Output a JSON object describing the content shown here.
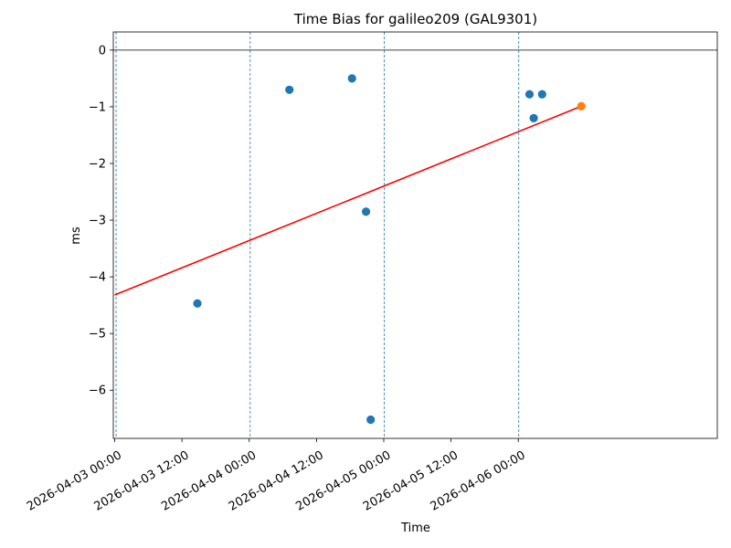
{
  "chart_data": {
    "type": "scatter",
    "title": "Time Bias for galileo209 (GAL9301)",
    "xlabel": "Time",
    "ylabel": "ms",
    "xlim": [
      "2026-04-02 23:45",
      "2026-04-07 11:30"
    ],
    "ylim": [
      -6.85,
      0.32
    ],
    "x_ticks": [
      "2026-04-03 00:00",
      "2026-04-03 12:00",
      "2026-04-04 00:00",
      "2026-04-04 12:00",
      "2026-04-05 00:00",
      "2026-04-05 12:00",
      "2026-04-06 00:00"
    ],
    "y_ticks": [
      0,
      -1,
      -2,
      -3,
      -4,
      -5,
      -6
    ],
    "y_tick_labels": [
      "0",
      "−1",
      "−2",
      "−3",
      "−4",
      "−5",
      "−6"
    ],
    "grid": false,
    "reference_line_y": 0,
    "vertical_markers": [
      "2026-04-03 00:15",
      "2026-04-04 00:10",
      "2026-04-05 00:05",
      "2026-04-06 00:05"
    ],
    "series": [
      {
        "color": "#1f77b4",
        "points": [
          {
            "x": "2026-04-03 14:45",
            "y": -4.47
          },
          {
            "x": "2026-04-04 07:10",
            "y": -0.7
          },
          {
            "x": "2026-04-04 18:20",
            "y": -0.5
          },
          {
            "x": "2026-04-04 20:50",
            "y": -2.85
          },
          {
            "x": "2026-04-04 21:40",
            "y": -6.52
          },
          {
            "x": "2026-04-06 02:00",
            "y": -0.78
          },
          {
            "x": "2026-04-06 02:45",
            "y": -1.2
          },
          {
            "x": "2026-04-06 04:15",
            "y": -0.78
          }
        ]
      },
      {
        "color": "#ff7f0e",
        "points": [
          {
            "x": "2026-04-06 11:15",
            "y": -0.99
          }
        ]
      }
    ],
    "trend_line": {
      "color": "#ff0000",
      "points": [
        {
          "x": "2026-04-03 00:00",
          "y": -4.32
        },
        {
          "x": "2026-04-06 11:15",
          "y": -0.99
        }
      ]
    }
  }
}
